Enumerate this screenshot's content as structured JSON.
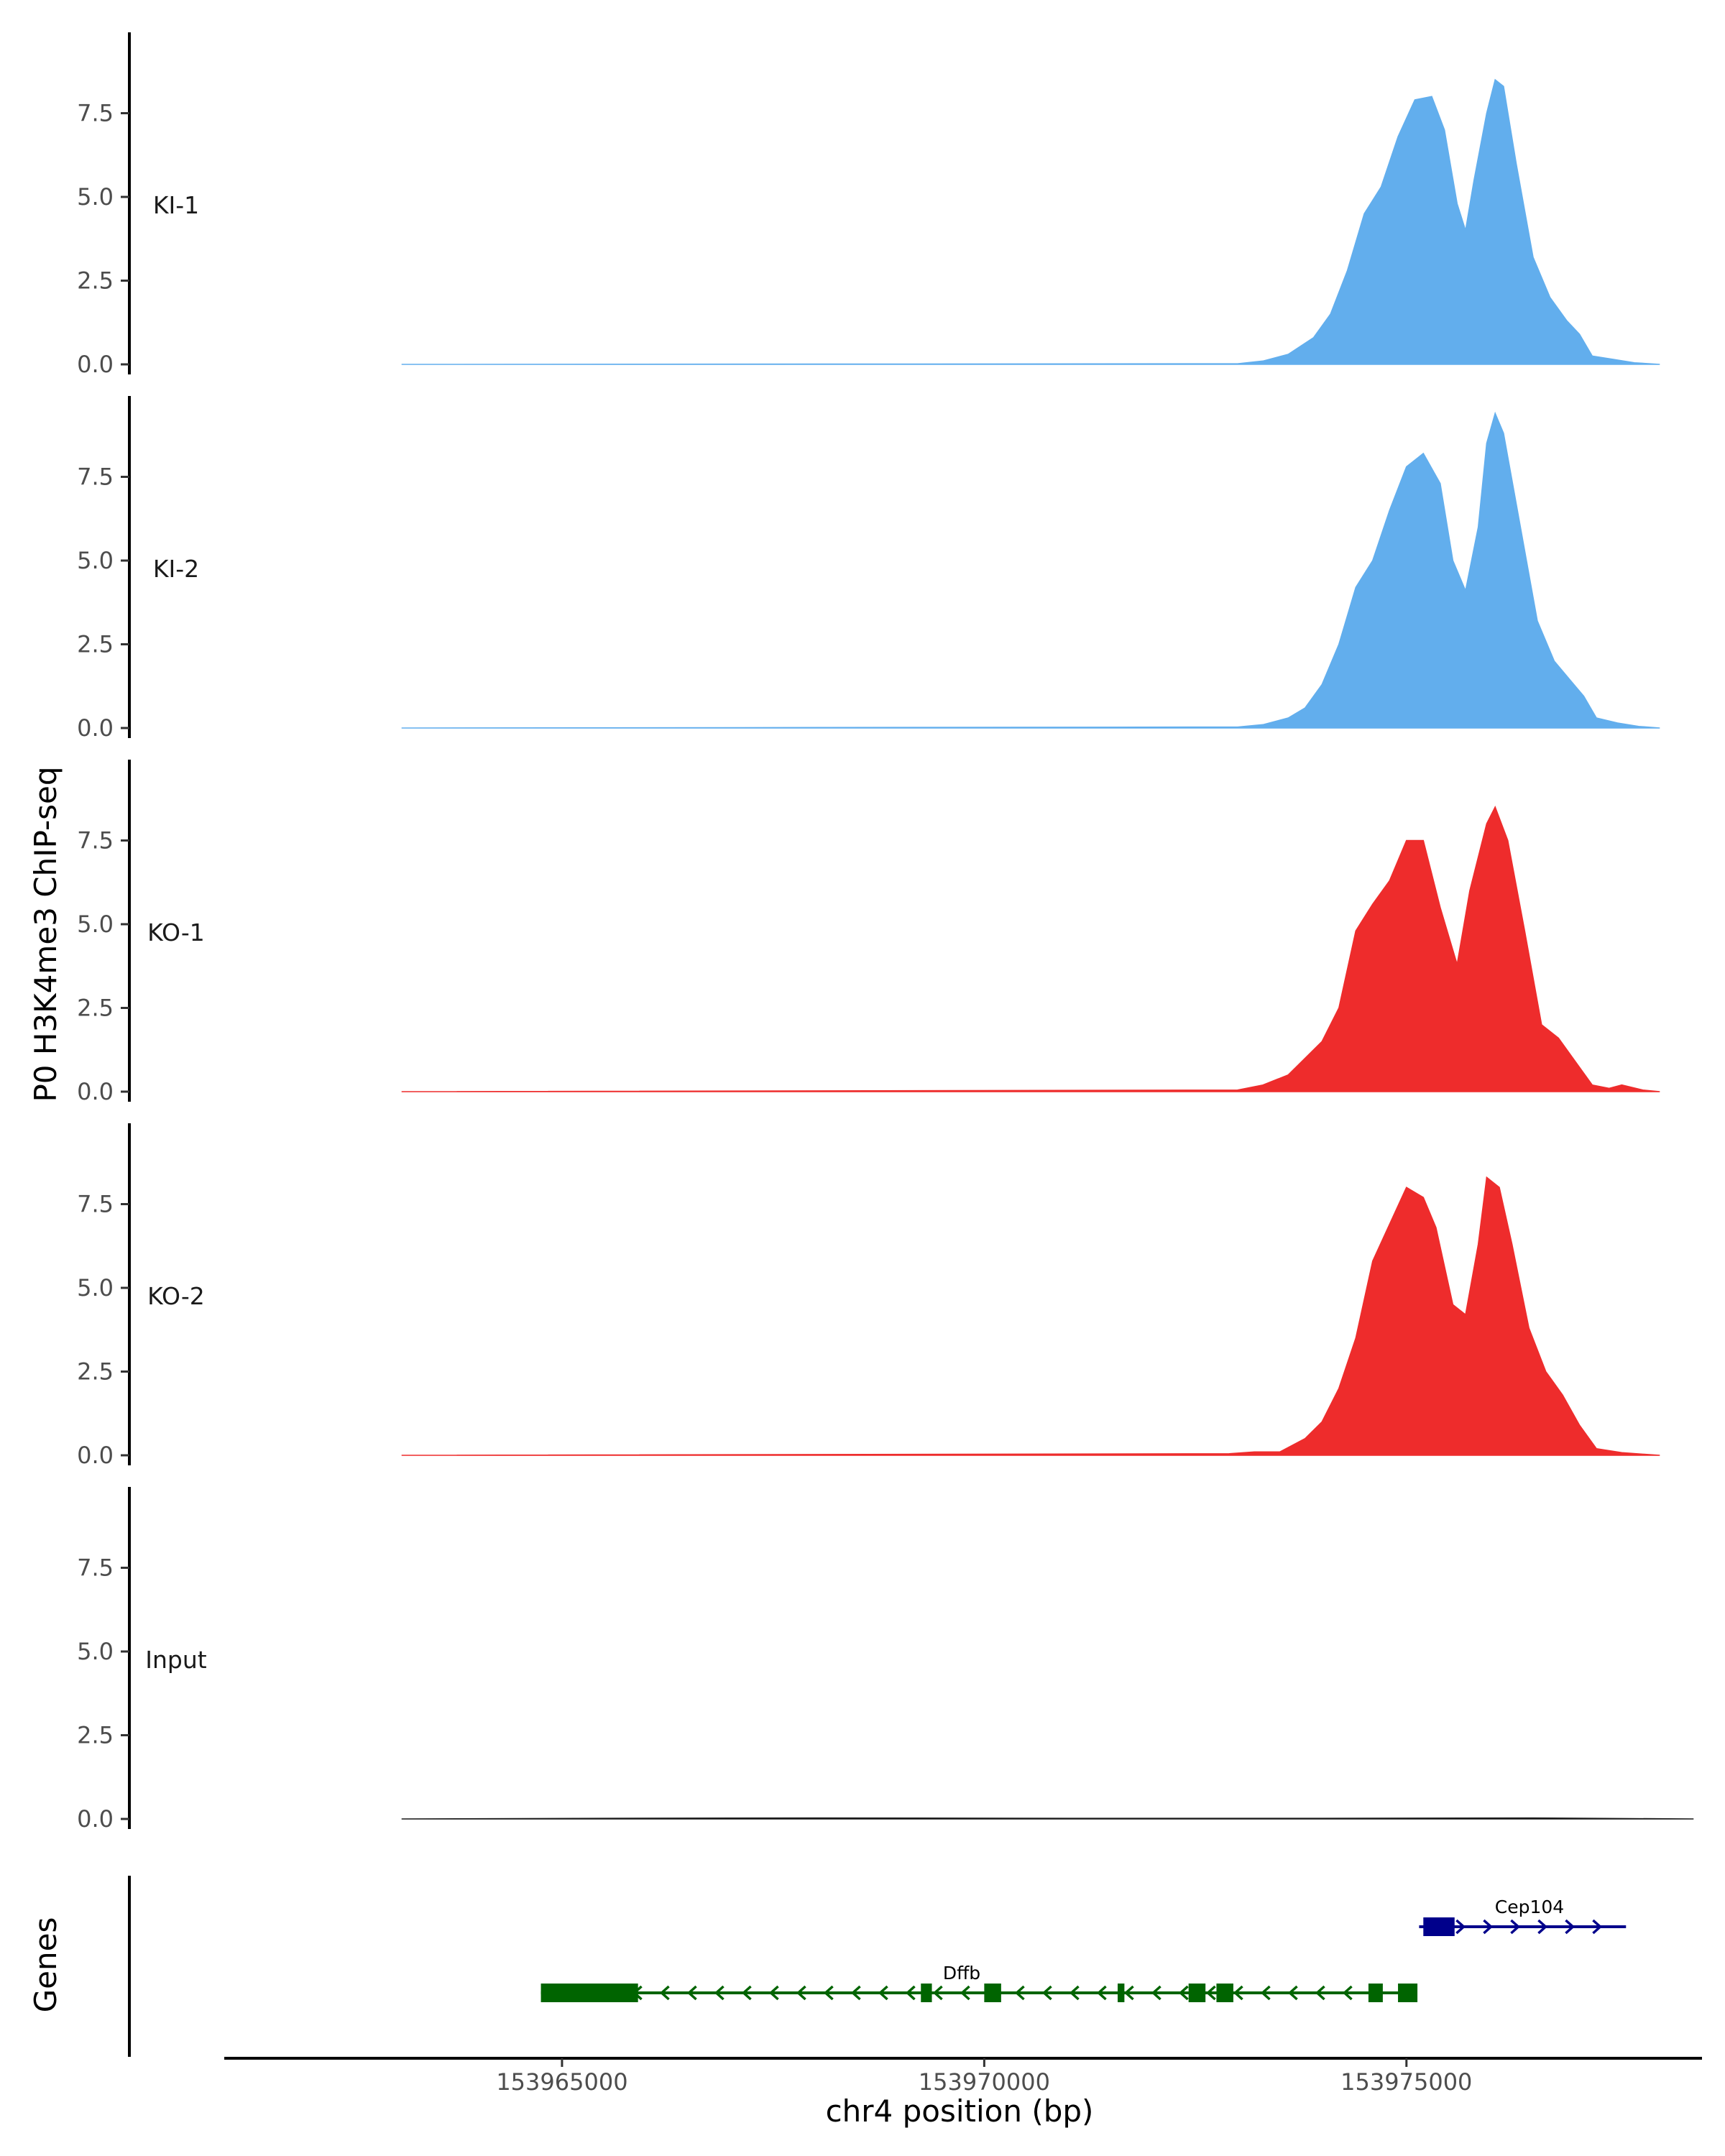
{
  "chart_data": {
    "type": "area",
    "title": "",
    "ylabel": "P0 H3K4me3 ChIP-seq",
    "xlabel": "chr4 position (bp)",
    "genes_ylabel": "Genes",
    "ylim": [
      0,
      10
    ],
    "xlim": [
      153961000,
      153978500
    ],
    "yticks": [
      {
        "v": 0,
        "label": "0.0"
      },
      {
        "v": 2.5,
        "label": "2.5"
      },
      {
        "v": 5,
        "label": "5.0"
      },
      {
        "v": 7.5,
        "label": "7.5"
      }
    ],
    "xticks": [
      {
        "v": 153965000,
        "label": "153965000"
      },
      {
        "v": 153970000,
        "label": "153970000"
      },
      {
        "v": 153975000,
        "label": "153975000"
      }
    ],
    "tracks": [
      {
        "name": "KI-1",
        "color": "#62aeed",
        "points": [
          [
            153963100,
            0
          ],
          [
            153973000,
            0.02
          ],
          [
            153973300,
            0.1
          ],
          [
            153973600,
            0.3
          ],
          [
            153973900,
            0.8
          ],
          [
            153974100,
            1.5
          ],
          [
            153974300,
            2.8
          ],
          [
            153974500,
            4.5
          ],
          [
            153974700,
            5.3
          ],
          [
            153974900,
            6.8
          ],
          [
            153975100,
            7.9
          ],
          [
            153975300,
            8.0
          ],
          [
            153975450,
            7.0
          ],
          [
            153975600,
            4.8
          ],
          [
            153975700,
            4.0
          ],
          [
            153975800,
            5.5
          ],
          [
            153975950,
            7.5
          ],
          [
            153976050,
            8.5
          ],
          [
            153976150,
            8.3
          ],
          [
            153976300,
            6.0
          ],
          [
            153976500,
            3.2
          ],
          [
            153976700,
            2.0
          ],
          [
            153976900,
            1.3
          ],
          [
            153977050,
            0.9
          ],
          [
            153977200,
            0.25
          ],
          [
            153977450,
            0.15
          ],
          [
            153977700,
            0.05
          ],
          [
            153978000,
            0
          ]
        ]
      },
      {
        "name": "KI-2",
        "color": "#62aeed",
        "points": [
          [
            153963100,
            0
          ],
          [
            153973000,
            0.03
          ],
          [
            153973300,
            0.1
          ],
          [
            153973600,
            0.3
          ],
          [
            153973800,
            0.6
          ],
          [
            153974000,
            1.3
          ],
          [
            153974200,
            2.5
          ],
          [
            153974400,
            4.2
          ],
          [
            153974600,
            5.0
          ],
          [
            153974800,
            6.5
          ],
          [
            153975000,
            7.8
          ],
          [
            153975200,
            8.2
          ],
          [
            153975400,
            7.3
          ],
          [
            153975550,
            5.0
          ],
          [
            153975700,
            4.1
          ],
          [
            153975850,
            6.0
          ],
          [
            153975950,
            8.5
          ],
          [
            153976050,
            9.4
          ],
          [
            153976150,
            8.8
          ],
          [
            153976350,
            6.0
          ],
          [
            153976550,
            3.2
          ],
          [
            153976750,
            2.0
          ],
          [
            153976950,
            1.4
          ],
          [
            153977100,
            0.95
          ],
          [
            153977250,
            0.3
          ],
          [
            153977500,
            0.15
          ],
          [
            153977750,
            0.05
          ],
          [
            153978000,
            0
          ]
        ]
      },
      {
        "name": "KO-1",
        "color": "#ee2c2c",
        "points": [
          [
            153963100,
            0
          ],
          [
            153973000,
            0.05
          ],
          [
            153973300,
            0.2
          ],
          [
            153973600,
            0.5
          ],
          [
            153973800,
            1.0
          ],
          [
            153974000,
            1.5
          ],
          [
            153974200,
            2.5
          ],
          [
            153974400,
            4.8
          ],
          [
            153974600,
            5.6
          ],
          [
            153974800,
            6.3
          ],
          [
            153975000,
            7.5
          ],
          [
            153975200,
            7.5
          ],
          [
            153975400,
            5.5
          ],
          [
            153975600,
            3.8
          ],
          [
            153975750,
            6.0
          ],
          [
            153975950,
            8.0
          ],
          [
            153976050,
            8.5
          ],
          [
            153976200,
            7.5
          ],
          [
            153976400,
            4.8
          ],
          [
            153976600,
            2.0
          ],
          [
            153976800,
            1.6
          ],
          [
            153977000,
            0.9
          ],
          [
            153977200,
            0.2
          ],
          [
            153977400,
            0.1
          ],
          [
            153977550,
            0.2
          ],
          [
            153977800,
            0.05
          ],
          [
            153978000,
            0
          ]
        ]
      },
      {
        "name": "KO-2",
        "color": "#ee2c2c",
        "points": [
          [
            153963100,
            0
          ],
          [
            153972900,
            0.05
          ],
          [
            153973200,
            0.1
          ],
          [
            153973500,
            0.1
          ],
          [
            153973800,
            0.5
          ],
          [
            153974000,
            1.0
          ],
          [
            153974200,
            2.0
          ],
          [
            153974400,
            3.5
          ],
          [
            153974600,
            5.8
          ],
          [
            153974800,
            6.9
          ],
          [
            153975000,
            8.0
          ],
          [
            153975200,
            7.7
          ],
          [
            153975350,
            6.8
          ],
          [
            153975550,
            4.5
          ],
          [
            153975700,
            4.2
          ],
          [
            153975850,
            6.3
          ],
          [
            153975950,
            8.3
          ],
          [
            153976100,
            8.0
          ],
          [
            153976250,
            6.3
          ],
          [
            153976450,
            3.8
          ],
          [
            153976650,
            2.5
          ],
          [
            153976850,
            1.8
          ],
          [
            153977050,
            0.9
          ],
          [
            153977250,
            0.2
          ],
          [
            153977550,
            0.08
          ],
          [
            153978000,
            0
          ]
        ]
      },
      {
        "name": "Input",
        "color": "#1a1a1a",
        "points": [
          [
            153963100,
            0
          ],
          [
            153965500,
            0.02
          ],
          [
            153968000,
            0.03
          ],
          [
            153971000,
            0.02
          ],
          [
            153974000,
            0.02
          ],
          [
            153976500,
            0.03
          ],
          [
            153978400,
            0
          ]
        ]
      }
    ],
    "genes": [
      {
        "name": "Cep104",
        "color": "#00008b",
        "strand": "+",
        "row": 1,
        "start": 153975150,
        "end": 153977600,
        "exons": [
          [
            153975200,
            153975570
          ]
        ]
      },
      {
        "name": "Dffb",
        "color": "#006400",
        "strand": "-",
        "row": 2,
        "start": 153964750,
        "end": 153975100,
        "exons": [
          [
            153964750,
            153965900
          ],
          [
            153969250,
            153969380
          ],
          [
            153970000,
            153970200
          ],
          [
            153971580,
            153971660
          ],
          [
            153972420,
            153972620
          ],
          [
            153972750,
            153972950
          ],
          [
            153974550,
            153974720
          ],
          [
            153974900,
            153975130
          ]
        ]
      }
    ]
  }
}
